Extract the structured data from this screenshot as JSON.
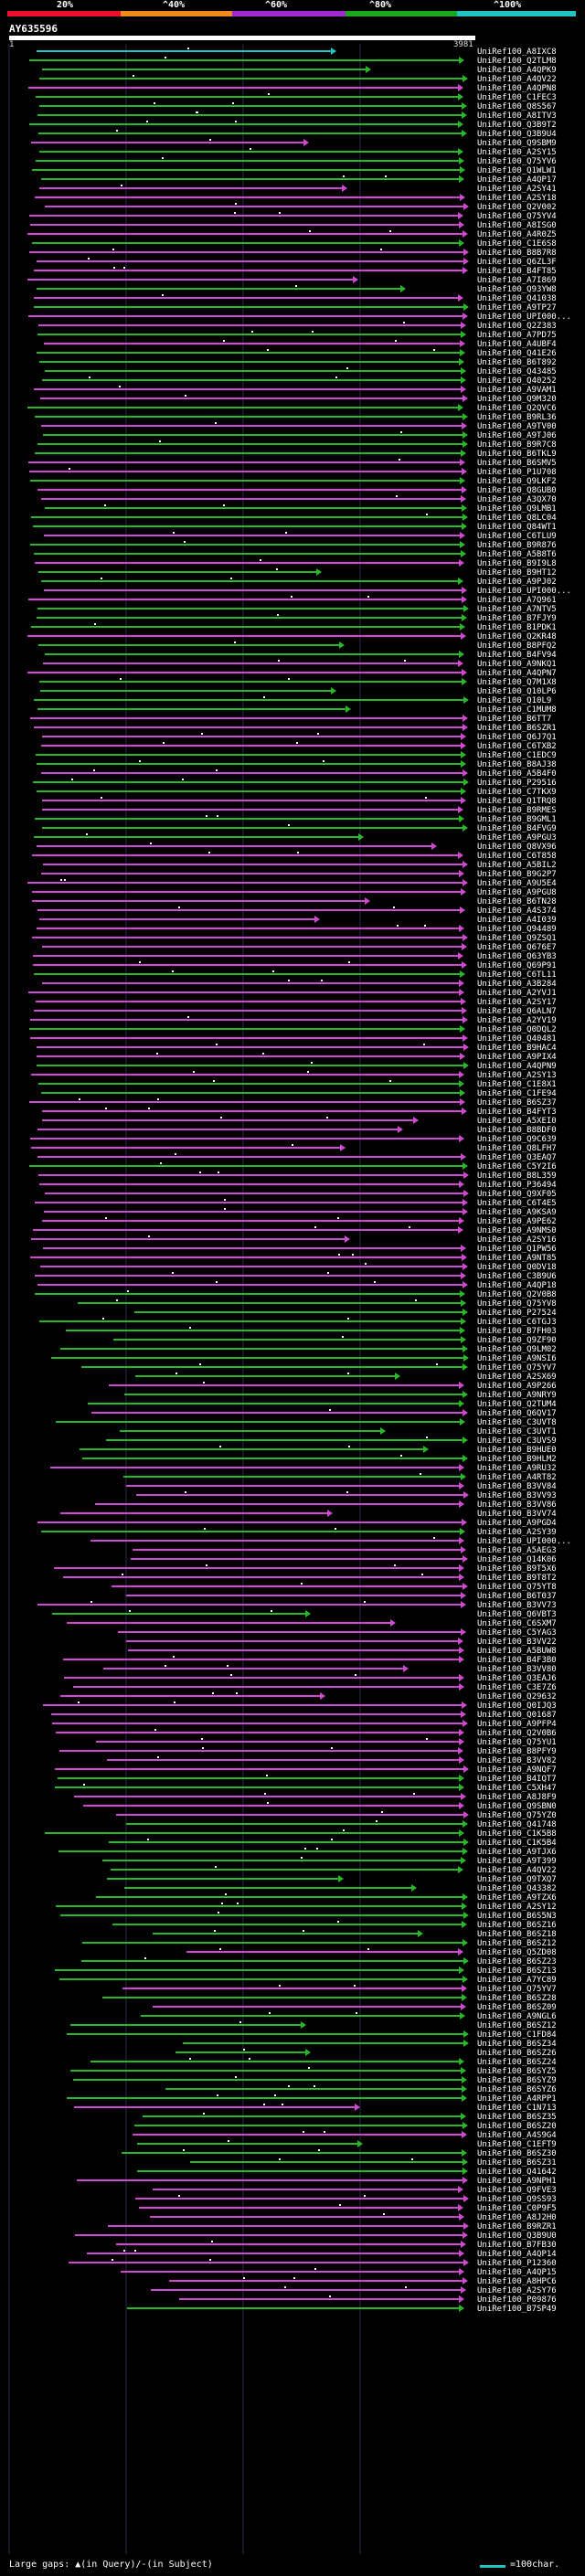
{
  "header": {
    "legend_labels": [
      "20%",
      "^40%",
      "^60%",
      "^80%",
      "^100%"
    ],
    "legend_colors": [
      "#e8102a",
      "#f08a1a",
      "#a02ad0",
      "#1ca81c",
      "#22c3c3"
    ],
    "query_id": "AY635596",
    "query_start": "1",
    "query_end": "3981"
  },
  "alignment_colors": {
    "purple": "#d04ad0",
    "green": "#28b828",
    "cyan": "#22c3c3"
  },
  "alignments": [
    {
      "label": "UniRef100_A8IXC8",
      "color": "cyan"
    },
    {
      "label": "UniRef100_Q2TLM8",
      "color": "green"
    },
    {
      "label": "UniRef100_A4QPK9",
      "color": "green"
    },
    {
      "label": "UniRef100_A4QV22",
      "color": "green"
    },
    {
      "label": "UniRef100_A4QPN8",
      "color": "purple"
    },
    {
      "label": "UniRef100_C1FEC3",
      "color": "green"
    },
    {
      "label": "UniRef100_Q8S567",
      "color": "green"
    },
    {
      "label": "UniRef100_A8ITV3",
      "color": "green"
    },
    {
      "label": "UniRef100_Q3B9T2",
      "color": "green"
    },
    {
      "label": "UniRef100_Q3B9U4",
      "color": "green"
    },
    {
      "label": "UniRef100_Q9SBM9",
      "color": "purple"
    },
    {
      "label": "UniRef100_A2SY15",
      "color": "green"
    },
    {
      "label": "UniRef100_Q75YV6",
      "color": "green"
    },
    {
      "label": "UniRef100_Q1WLW1",
      "color": "green"
    },
    {
      "label": "UniRef100_A4QP17",
      "color": "green"
    },
    {
      "label": "UniRef100_A2SY41",
      "color": "purple"
    },
    {
      "label": "UniRef100_A2SY18",
      "color": "purple"
    },
    {
      "label": "UniRef100_Q2V002",
      "color": "purple"
    },
    {
      "label": "UniRef100_Q75YV4",
      "color": "purple"
    },
    {
      "label": "UniRef100_A8ISG0",
      "color": "purple"
    },
    {
      "label": "UniRef100_A4R0Z5",
      "color": "purple"
    },
    {
      "label": "UniRef100_C1E6S8",
      "color": "green"
    },
    {
      "label": "UniRef100_B8B7R8",
      "color": "purple"
    },
    {
      "label": "UniRef100_Q6ZL3F",
      "color": "purple"
    },
    {
      "label": "UniRef100_B4FT85",
      "color": "purple"
    },
    {
      "label": "UniRef100_A7I869",
      "color": "purple"
    },
    {
      "label": "UniRef100_Q93YW8",
      "color": "green"
    },
    {
      "label": "UniRef100_Q41038",
      "color": "purple"
    },
    {
      "label": "UniRef100_A9TP27",
      "color": "green"
    },
    {
      "label": "UniRef100_UPI000...",
      "color": "purple"
    },
    {
      "label": "UniRef100_Q2Z383",
      "color": "purple"
    },
    {
      "label": "UniRef100_A7PD75",
      "color": "green"
    },
    {
      "label": "UniRef100_A4UBF4",
      "color": "purple"
    },
    {
      "label": "UniRef100_Q41E26",
      "color": "green"
    },
    {
      "label": "UniRef100_B6T892",
      "color": "green"
    },
    {
      "label": "UniRef100_Q43485",
      "color": "green"
    },
    {
      "label": "UniRef100_Q40252",
      "color": "green"
    },
    {
      "label": "UniRef100_A9VAM1",
      "color": "purple"
    },
    {
      "label": "UniRef100_Q9M320",
      "color": "purple"
    },
    {
      "label": "UniRef100_Q2QVC6",
      "color": "green"
    },
    {
      "label": "UniRef100_B9RL36",
      "color": "green"
    },
    {
      "label": "UniRef100_A9TV00",
      "color": "purple"
    },
    {
      "label": "UniRef100_A9TJ06",
      "color": "green"
    },
    {
      "label": "UniRef100_B9R7C8",
      "color": "green"
    },
    {
      "label": "UniRef100_B6TKL9",
      "color": "green"
    },
    {
      "label": "UniRef100_B6SMV5",
      "color": "purple"
    },
    {
      "label": "UniRef100_P1U708",
      "color": "purple"
    },
    {
      "label": "UniRef100_Q9LKF2",
      "color": "green"
    },
    {
      "label": "UniRef100_Q8GUB0",
      "color": "purple"
    },
    {
      "label": "UniRef100_A3QX70",
      "color": "purple"
    },
    {
      "label": "UniRef100_Q9LMB1",
      "color": "green"
    },
    {
      "label": "UniRef100_Q8LC04",
      "color": "green"
    },
    {
      "label": "UniRef100_Q84WT1",
      "color": "green"
    },
    {
      "label": "UniRef100_C6TLU9",
      "color": "purple"
    },
    {
      "label": "UniRef100_B9R876",
      "color": "green"
    },
    {
      "label": "UniRef100_A5B8T6",
      "color": "green"
    },
    {
      "label": "UniRef100_B9I9L8",
      "color": "purple"
    },
    {
      "label": "UniRef100_B9HT12",
      "color": "green"
    },
    {
      "label": "UniRef100_A9PJ02",
      "color": "green"
    },
    {
      "label": "UniRef100_UPI000...",
      "color": "purple"
    },
    {
      "label": "UniRef100_A7Q961",
      "color": "purple"
    },
    {
      "label": "UniRef100_A7NTV5",
      "color": "green"
    },
    {
      "label": "UniRef100_B7FJY9",
      "color": "green"
    },
    {
      "label": "UniRef100_B1PDK1",
      "color": "green"
    },
    {
      "label": "UniRef100_Q2KR48",
      "color": "purple"
    },
    {
      "label": "UniRef100_B8PFQ2",
      "color": "green"
    },
    {
      "label": "UniRef100_B4FV94",
      "color": "green"
    },
    {
      "label": "UniRef100_A9NKQ1",
      "color": "purple"
    },
    {
      "label": "UniRef100_A4QPN7",
      "color": "purple"
    },
    {
      "label": "UniRef100_Q7M1X8",
      "color": "green"
    },
    {
      "label": "UniRef100_Q10LP6",
      "color": "green"
    },
    {
      "label": "UniRef100_Q10L9",
      "color": "green"
    },
    {
      "label": "UniRef100_C1MUM8",
      "color": "green"
    },
    {
      "label": "UniRef100_B6TT7",
      "color": "purple"
    },
    {
      "label": "UniRef100_B6SZR1",
      "color": "purple"
    },
    {
      "label": "UniRef100_Q6J7Q1",
      "color": "purple"
    },
    {
      "label": "UniRef100_C6TXB2",
      "color": "purple"
    },
    {
      "label": "UniRef100_C1EDC9",
      "color": "green"
    },
    {
      "label": "UniRef100_B8AJ38",
      "color": "green"
    },
    {
      "label": "UniRef100_A5B4F0",
      "color": "purple"
    },
    {
      "label": "UniRef100_P29516",
      "color": "green"
    },
    {
      "label": "UniRef100_C7TKX9",
      "color": "green"
    },
    {
      "label": "UniRef100_Q1TRQ8",
      "color": "purple"
    },
    {
      "label": "UniRef100_B9RMES",
      "color": "purple"
    },
    {
      "label": "UniRef100_B9GML1",
      "color": "green"
    },
    {
      "label": "UniRef100_B4FVG9",
      "color": "green"
    },
    {
      "label": "UniRef100_A9PGU3",
      "color": "green"
    },
    {
      "label": "UniRef100_Q8VX96",
      "color": "purple"
    },
    {
      "label": "UniRef100_C6T858",
      "color": "purple"
    },
    {
      "label": "UniRef100_A5BIL2",
      "color": "purple"
    },
    {
      "label": "UniRef100_B9G2P7",
      "color": "purple"
    },
    {
      "label": "UniRef100_A9U5E4",
      "color": "purple"
    },
    {
      "label": "UniRef100_A9PGU8",
      "color": "purple"
    },
    {
      "label": "UniRef100_B6TN28",
      "color": "purple"
    },
    {
      "label": "UniRef100_A4S374",
      "color": "purple"
    },
    {
      "label": "UniRef100_A4I039",
      "color": "purple"
    },
    {
      "label": "UniRef100_Q94489",
      "color": "purple"
    },
    {
      "label": "UniRef100_Q9ZSQ1",
      "color": "purple"
    },
    {
      "label": "UniRef100_Q676E7",
      "color": "purple"
    },
    {
      "label": "UniRef100_Q63YB3",
      "color": "purple"
    },
    {
      "label": "UniRef100_Q69P91",
      "color": "purple"
    },
    {
      "label": "UniRef100_C6TL11",
      "color": "green"
    },
    {
      "label": "UniRef100_A3B284",
      "color": "purple"
    },
    {
      "label": "UniRef100_A2YVJ1",
      "color": "purple"
    },
    {
      "label": "UniRef100_A2SY17",
      "color": "purple"
    },
    {
      "label": "UniRef100_Q6ALN7",
      "color": "purple"
    },
    {
      "label": "UniRef100_A2YV19",
      "color": "purple"
    },
    {
      "label": "UniRef100_Q0DQL2",
      "color": "green"
    },
    {
      "label": "UniRef100_Q40481",
      "color": "purple"
    },
    {
      "label": "UniRef100_B9HAC4",
      "color": "purple"
    },
    {
      "label": "UniRef100_A9PIX4",
      "color": "purple"
    },
    {
      "label": "UniRef100_A4QPN9",
      "color": "green"
    },
    {
      "label": "UniRef100_A2SY13",
      "color": "purple"
    },
    {
      "label": "UniRef100_C1E8X1",
      "color": "green"
    },
    {
      "label": "UniRef100_C1FE94",
      "color": "green"
    },
    {
      "label": "UniRef100_B6SZ37",
      "color": "purple"
    },
    {
      "label": "UniRef100_B4FYT3",
      "color": "purple"
    },
    {
      "label": "UniRef100_A5XEI0",
      "color": "purple"
    },
    {
      "label": "UniRef100_B8BDF0",
      "color": "purple"
    },
    {
      "label": "UniRef100_Q9C639",
      "color": "purple"
    },
    {
      "label": "UniRef100_Q8LFH7",
      "color": "purple"
    },
    {
      "label": "UniRef100_Q3EAQ7",
      "color": "purple"
    },
    {
      "label": "UniRef100_C5Y2I6",
      "color": "green"
    },
    {
      "label": "UniRef100_B8L359",
      "color": "purple"
    },
    {
      "label": "UniRef100_P36494",
      "color": "purple"
    },
    {
      "label": "UniRef100_Q9XF05",
      "color": "purple"
    },
    {
      "label": "UniRef100_C6T4E5",
      "color": "purple"
    },
    {
      "label": "UniRef100_A9KSA9",
      "color": "purple"
    },
    {
      "label": "UniRef100_A9PE62",
      "color": "purple"
    },
    {
      "label": "UniRef100_A9NMS0",
      "color": "purple"
    },
    {
      "label": "UniRef100_A2SY16",
      "color": "purple"
    },
    {
      "label": "UniRef100_Q1PW56",
      "color": "purple"
    },
    {
      "label": "UniRef100_A9NT85",
      "color": "purple"
    },
    {
      "label": "UniRef100_Q0DV18",
      "color": "purple"
    },
    {
      "label": "UniRef100_C3B9U6",
      "color": "purple"
    },
    {
      "label": "UniRef100_A4QP18",
      "color": "purple"
    },
    {
      "label": "UniRef100_Q2V0B8",
      "color": "green"
    },
    {
      "label": "UniRef100_Q75YV8",
      "color": "green"
    },
    {
      "label": "UniRef100_P27524",
      "color": "green"
    },
    {
      "label": "UniRef100_C6TGJ3",
      "color": "green"
    },
    {
      "label": "UniRef100_B7FH03",
      "color": "green"
    },
    {
      "label": "UniRef100_Q9ZF90",
      "color": "green"
    },
    {
      "label": "UniRef100_Q9LM02",
      "color": "green"
    },
    {
      "label": "UniRef100_A9NSI6",
      "color": "green"
    },
    {
      "label": "UniRef100_Q75YV7",
      "color": "green"
    },
    {
      "label": "UniRef100_A2SX69",
      "color": "green"
    },
    {
      "label": "UniRef100_A9P266",
      "color": "purple"
    },
    {
      "label": "UniRef100_A9NRY9",
      "color": "green"
    },
    {
      "label": "UniRef100_Q2TUM4",
      "color": "green"
    },
    {
      "label": "UniRef100_Q6QV17",
      "color": "purple"
    },
    {
      "label": "UniRef100_C3UVT8",
      "color": "green"
    },
    {
      "label": "UniRef100_C3UVT1",
      "color": "green"
    },
    {
      "label": "UniRef100_C3UVS9",
      "color": "green"
    },
    {
      "label": "UniRef100_B9HUE0",
      "color": "green"
    },
    {
      "label": "UniRef100_B9HLM2",
      "color": "green"
    },
    {
      "label": "UniRef100_A9RU32",
      "color": "purple"
    },
    {
      "label": "UniRef100_A4RT82",
      "color": "green"
    },
    {
      "label": "UniRef100_B3VV84",
      "color": "purple"
    },
    {
      "label": "UniRef100_B3VV93",
      "color": "purple"
    },
    {
      "label": "UniRef100_B3VV86",
      "color": "purple"
    },
    {
      "label": "UniRef100_B3VV74",
      "color": "purple"
    },
    {
      "label": "UniRef100_A9PGD4",
      "color": "purple"
    },
    {
      "label": "UniRef100_A2SY39",
      "color": "green"
    },
    {
      "label": "UniRef100_UPI000...",
      "color": "purple"
    },
    {
      "label": "UniRef100_A5AEG3",
      "color": "purple"
    },
    {
      "label": "UniRef100_Q14K06",
      "color": "purple"
    },
    {
      "label": "UniRef100_B9T5X6",
      "color": "purple"
    },
    {
      "label": "UniRef100_B9T8T2",
      "color": "purple"
    },
    {
      "label": "UniRef100_Q75YT8",
      "color": "purple"
    },
    {
      "label": "UniRef100_B6T037",
      "color": "purple"
    },
    {
      "label": "UniRef100_B3VV73",
      "color": "purple"
    },
    {
      "label": "UniRef100_Q6VBT3",
      "color": "green"
    },
    {
      "label": "UniRef100_C6SXM7",
      "color": "purple"
    },
    {
      "label": "UniRef100_C5YAG3",
      "color": "purple"
    },
    {
      "label": "UniRef100_B3VV22",
      "color": "purple"
    },
    {
      "label": "UniRef100_A5BUW8",
      "color": "purple"
    },
    {
      "label": "UniRef100_B4F3B0",
      "color": "purple"
    },
    {
      "label": "UniRef100_B3VV80",
      "color": "purple"
    },
    {
      "label": "UniRef100_Q3EAJ6",
      "color": "purple"
    },
    {
      "label": "UniRef100_C3E7Z6",
      "color": "purple"
    },
    {
      "label": "UniRef100_Q29632",
      "color": "purple"
    },
    {
      "label": "UniRef100_Q0IJQ3",
      "color": "purple"
    },
    {
      "label": "UniRef100_Q01687",
      "color": "purple"
    },
    {
      "label": "UniRef100_A9PFP4",
      "color": "purple"
    },
    {
      "label": "UniRef100_Q2V0B6",
      "color": "purple"
    },
    {
      "label": "UniRef100_Q75YU1",
      "color": "purple"
    },
    {
      "label": "UniRef100_B8PFY9",
      "color": "purple"
    },
    {
      "label": "UniRef100_B3VV82",
      "color": "purple"
    },
    {
      "label": "UniRef100_A9NQF7",
      "color": "purple"
    },
    {
      "label": "UniRef100_B4IQT7",
      "color": "green"
    },
    {
      "label": "UniRef100_C5XH47",
      "color": "green"
    },
    {
      "label": "UniRef100_A8J8F9",
      "color": "purple"
    },
    {
      "label": "UniRef100_Q9SBN0",
      "color": "purple"
    },
    {
      "label": "UniRef100_Q75YZ0",
      "color": "purple"
    },
    {
      "label": "UniRef100_Q41748",
      "color": "green"
    },
    {
      "label": "UniRef100_C1K5B8",
      "color": "green"
    },
    {
      "label": "UniRef100_C1K5B4",
      "color": "green"
    },
    {
      "label": "UniRef100_A9TJX6",
      "color": "green"
    },
    {
      "label": "UniRef100_A9T399",
      "color": "green"
    },
    {
      "label": "UniRef100_A4QV22",
      "color": "green"
    },
    {
      "label": "UniRef100_Q9TXQ7",
      "color": "green"
    },
    {
      "label": "UniRef100_Q43382",
      "color": "green"
    },
    {
      "label": "UniRef100_A9TZX6",
      "color": "green"
    },
    {
      "label": "UniRef100_A2SY12",
      "color": "green"
    },
    {
      "label": "UniRef100_B6S5N3",
      "color": "green"
    },
    {
      "label": "UniRef100_B6SZ16",
      "color": "green"
    },
    {
      "label": "UniRef100_B6SZ18",
      "color": "green"
    },
    {
      "label": "UniRef100_B6SZ12",
      "color": "green"
    },
    {
      "label": "UniRef100_Q5ZD08",
      "color": "purple"
    },
    {
      "label": "UniRef100_B6SZ23",
      "color": "green"
    },
    {
      "label": "UniRef100_B6SZ13",
      "color": "green"
    },
    {
      "label": "UniRef100_A7YC89",
      "color": "green"
    },
    {
      "label": "UniRef100_Q75YV7",
      "color": "purple"
    },
    {
      "label": "UniRef100_B6SZ28",
      "color": "green"
    },
    {
      "label": "UniRef100_B6SZ09",
      "color": "purple"
    },
    {
      "label": "UniRef100_A9NGL6",
      "color": "green"
    },
    {
      "label": "UniRef100_B6SZ12",
      "color": "green"
    },
    {
      "label": "UniRef100_C1FD84",
      "color": "green"
    },
    {
      "label": "UniRef100_B6SZ34",
      "color": "green"
    },
    {
      "label": "UniRef100_B6SZ26",
      "color": "green"
    },
    {
      "label": "UniRef100_B6SZ24",
      "color": "green"
    },
    {
      "label": "UniRef100_B6SYZ5",
      "color": "green"
    },
    {
      "label": "UniRef100_B6SYZ9",
      "color": "green"
    },
    {
      "label": "UniRef100_B6SYZ6",
      "color": "green"
    },
    {
      "label": "UniRef100_A4RPP1",
      "color": "green"
    },
    {
      "label": "UniRef100_C1N713",
      "color": "purple"
    },
    {
      "label": "UniRef100_B6SZ35",
      "color": "green"
    },
    {
      "label": "UniRef100_B6SZ20",
      "color": "green"
    },
    {
      "label": "UniRef100_A4S9G4",
      "color": "purple"
    },
    {
      "label": "UniRef100_C1EFT9",
      "color": "green"
    },
    {
      "label": "UniRef100_B6SZ30",
      "color": "green"
    },
    {
      "label": "UniRef100_B6SZ31",
      "color": "green"
    },
    {
      "label": "UniRef100_Q41642",
      "color": "green"
    },
    {
      "label": "UniRef100_A9NPH1",
      "color": "purple"
    },
    {
      "label": "UniRef100_Q9FVE3",
      "color": "purple"
    },
    {
      "label": "UniRef100_Q9SS93",
      "color": "purple"
    },
    {
      "label": "UniRef100_C0P9F5",
      "color": "purple"
    },
    {
      "label": "UniRef100_A8J2H0",
      "color": "purple"
    },
    {
      "label": "UniRef100_B9RZR1",
      "color": "purple"
    },
    {
      "label": "UniRef100_Q3B9U0",
      "color": "purple"
    },
    {
      "label": "UniRef100_B7FB30",
      "color": "purple"
    },
    {
      "label": "UniRef100_A4QP14",
      "color": "purple"
    },
    {
      "label": "UniRef100_P12360",
      "color": "purple"
    },
    {
      "label": "UniRef100_A4QP15",
      "color": "purple"
    },
    {
      "label": "UniRef100_A8HPC6",
      "color": "purple"
    },
    {
      "label": "UniRef100_A2SY76",
      "color": "purple"
    },
    {
      "label": "UniRef100_P09876",
      "color": "purple"
    },
    {
      "label": "UniRef100_B7SP49",
      "color": "green"
    }
  ],
  "footer": {
    "large_gaps": "Large gaps: ▲(in Query)/-(in Subject)",
    "scale_text": "=100char."
  }
}
